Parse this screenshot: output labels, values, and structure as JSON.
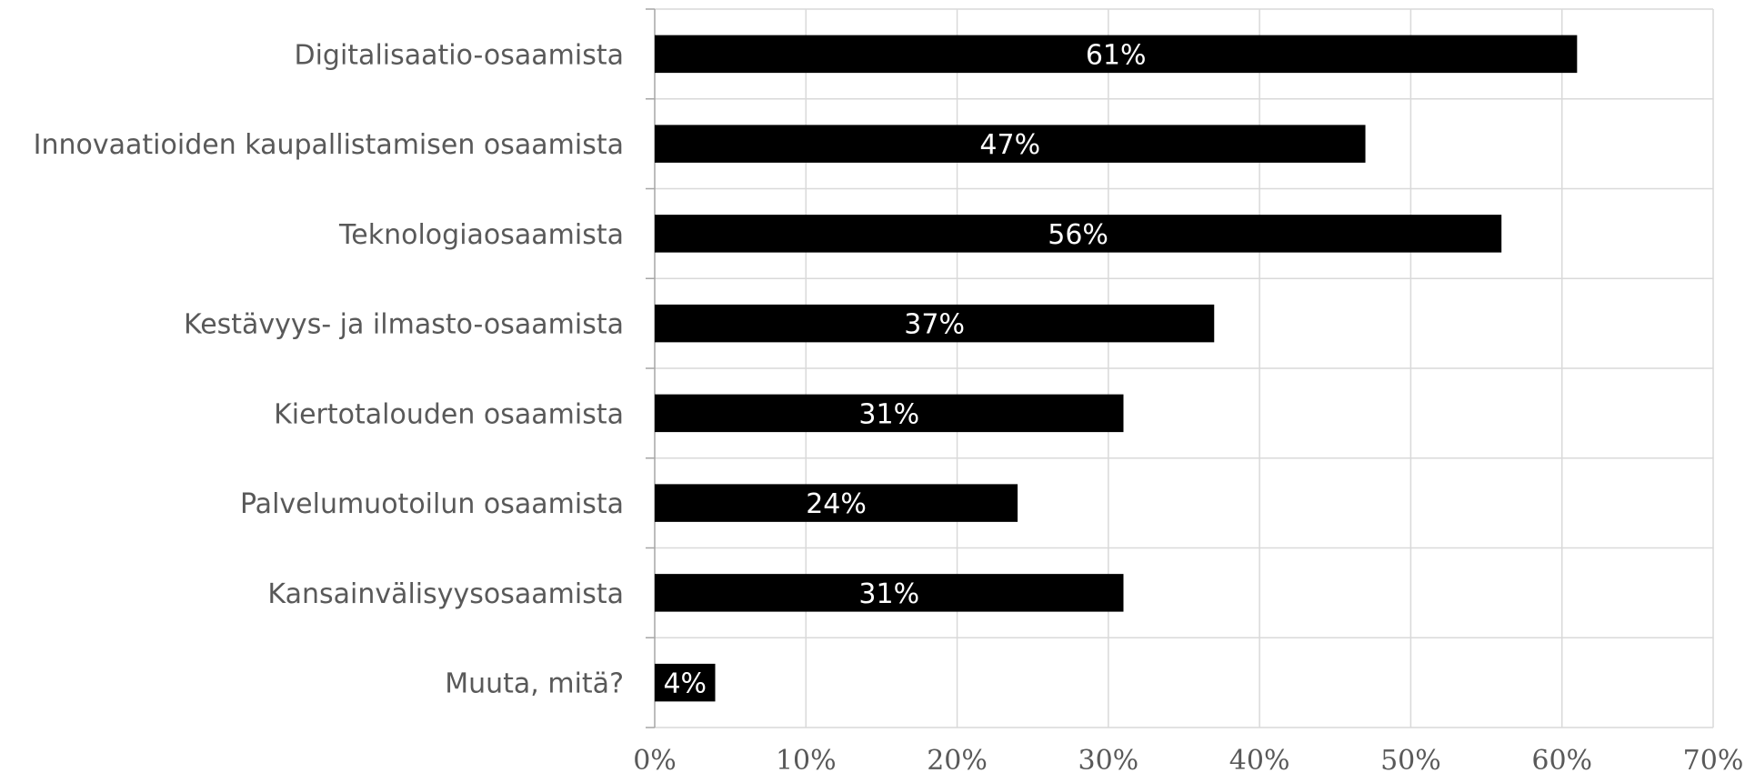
{
  "chart_data": {
    "type": "bar",
    "orientation": "horizontal",
    "categories": [
      "Digitalisaatio-osaamista",
      "Innovaatioiden kaupallistamisen osaamista",
      "Teknologiaosaamista",
      "Kestävyys- ja ilmasto-osaamista",
      "Kiertotalouden osaamista",
      "Palvelumuotoilun osaamista",
      "Kansainvälisyysosaamista",
      "Muuta, mitä?"
    ],
    "values": [
      61,
      47,
      56,
      37,
      31,
      24,
      31,
      4
    ],
    "data_labels": [
      "61%",
      "47%",
      "56%",
      "37%",
      "31%",
      "24%",
      "31%",
      "4%"
    ],
    "x_ticks": [
      "0%",
      "10%",
      "20%",
      "30%",
      "40%",
      "50%",
      "60%",
      "70%"
    ],
    "xlim": [
      0,
      70
    ],
    "grid": true,
    "legend": "none",
    "colors": {
      "bar": "#000000",
      "grid": "#d9d9d9",
      "axis": "#a6a6a6",
      "text": "#595959",
      "data_label": "#ffffff"
    }
  }
}
